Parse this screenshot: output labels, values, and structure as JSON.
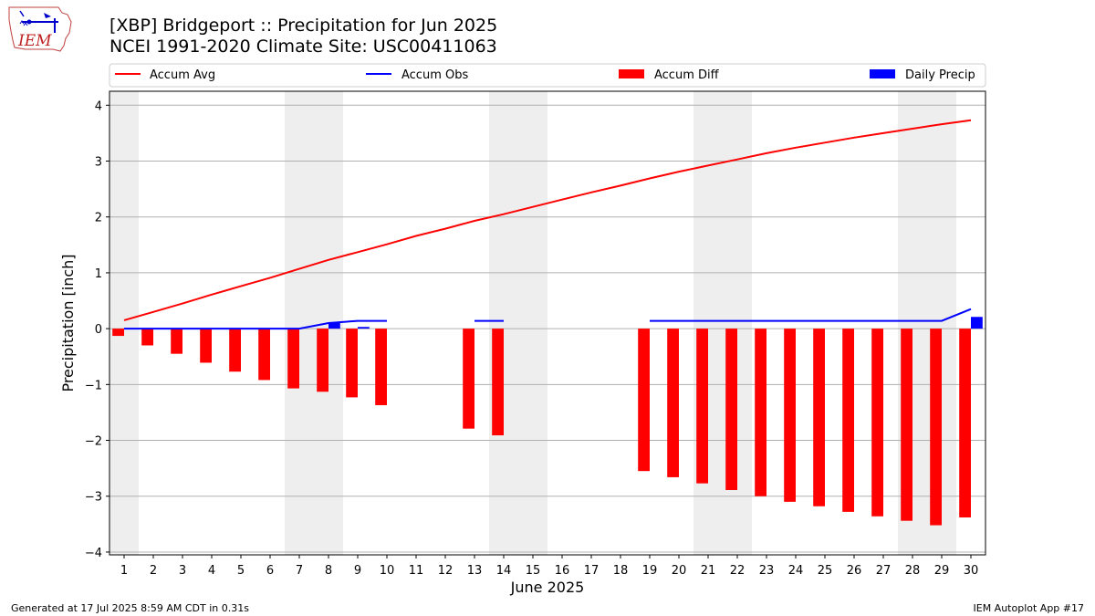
{
  "header": {
    "title_line1": "[XBP] Bridgeport :: Precipitation for Jun 2025",
    "title_line2": "NCEI 1991-2020 Climate Site: USC00411063"
  },
  "logo": {
    "text": "IEM"
  },
  "footer": {
    "generated": "Generated at 17 Jul 2025 8:59 AM CDT in 0.31s",
    "app": "IEM Autoplot App #17"
  },
  "chart_data": {
    "type": "bar",
    "xlabel": "June 2025",
    "ylabel": "Precipitation [inch]",
    "xlim": [
      0.5,
      30.5
    ],
    "ylim": [
      -4.05,
      4.25
    ],
    "yticks": [
      -4,
      -3,
      -2,
      -1,
      0,
      1,
      2,
      3,
      4
    ],
    "ytick_labels": [
      "−4",
      "−3",
      "−2",
      "−1",
      "0",
      "1",
      "2",
      "3",
      "4"
    ],
    "days": [
      1,
      2,
      3,
      4,
      5,
      6,
      7,
      8,
      9,
      10,
      11,
      12,
      13,
      14,
      15,
      16,
      17,
      18,
      19,
      20,
      21,
      22,
      23,
      24,
      25,
      26,
      27,
      28,
      29,
      30
    ],
    "weekend_shading": [
      [
        0.5,
        1.5
      ],
      [
        6.5,
        8.5
      ],
      [
        13.5,
        15.5
      ],
      [
        20.5,
        22.5
      ],
      [
        27.5,
        29.5
      ]
    ],
    "grid": "horizontal",
    "legend_position": "top",
    "colors": {
      "avg": "#ff0000",
      "obs": "#0000ff",
      "diff": "#ff0000",
      "daily": "#0000ff",
      "shade": "#eeeeee"
    },
    "series": [
      {
        "name": "Accum Avg",
        "kind": "line",
        "color": "#ff0000",
        "values": [
          0.15,
          0.3,
          0.45,
          0.61,
          0.76,
          0.91,
          1.07,
          1.23,
          1.37,
          1.51,
          1.66,
          1.79,
          1.93,
          2.05,
          2.18,
          2.31,
          2.44,
          2.56,
          2.69,
          2.81,
          2.92,
          3.03,
          3.14,
          3.24,
          3.33,
          3.42,
          3.5,
          3.58,
          3.66,
          3.73
        ]
      },
      {
        "name": "Accum Obs",
        "kind": "line",
        "color": "#0000ff",
        "values": [
          0,
          0,
          0,
          0,
          0,
          0,
          0,
          0.1,
          0.14,
          0.14,
          null,
          null,
          0.14,
          0.14,
          null,
          null,
          null,
          null,
          0.14,
          0.14,
          0.14,
          0.14,
          0.14,
          0.14,
          0.14,
          0.14,
          0.14,
          0.14,
          0.14,
          0.35
        ]
      },
      {
        "name": "Accum Diff",
        "kind": "bar",
        "color": "#ff0000",
        "values": [
          -0.13,
          -0.3,
          -0.45,
          -0.61,
          -0.77,
          -0.92,
          -1.07,
          -1.13,
          -1.23,
          -1.37,
          null,
          null,
          -1.79,
          -1.91,
          null,
          null,
          null,
          null,
          -2.55,
          -2.66,
          -2.77,
          -2.89,
          -3.0,
          -3.1,
          -3.18,
          -3.28,
          -3.36,
          -3.44,
          -3.52,
          -3.38
        ]
      },
      {
        "name": "Daily Precip",
        "kind": "bar",
        "color": "#0000ff",
        "values": [
          0,
          0,
          0,
          0,
          0,
          0,
          0,
          0.1,
          0.03,
          0,
          null,
          null,
          0,
          0,
          null,
          null,
          null,
          null,
          0,
          0,
          0,
          0,
          0,
          0,
          0,
          0,
          0,
          0,
          0,
          0.21
        ]
      }
    ]
  }
}
